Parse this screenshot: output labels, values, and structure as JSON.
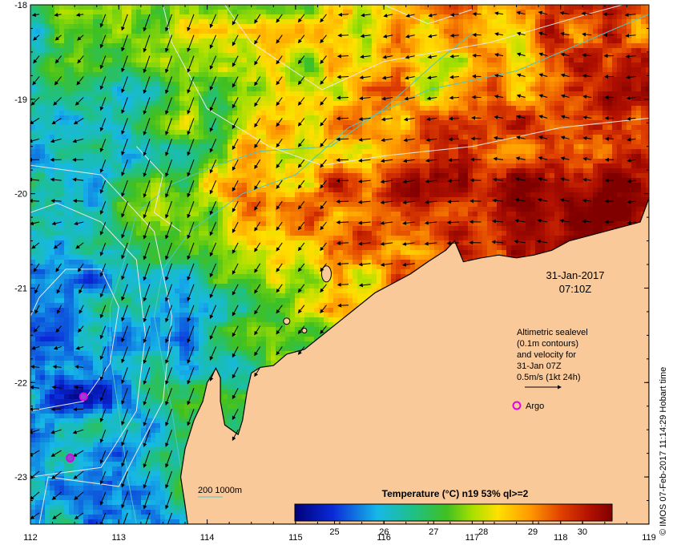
{
  "map": {
    "date_line": "31-Jan-2017",
    "time_line": "07:10Z",
    "legend_lines": [
      "Altimetric sealevel",
      "(0.1m contours)",
      "and velocity for",
      "31-Jan 07Z",
      "0.5m/s (1kt 24h)"
    ],
    "argo_label": "Argo",
    "depth_label": "200  1000m",
    "credit": "© IMOS 07-Feb-2017 11:14:29 Hobart time",
    "colorbar_title": "Temperature (°C) n19 53% ql>=2",
    "colorbar_ticks": [
      "25",
      "26",
      "27",
      "28",
      "29",
      "30"
    ],
    "colorbar_range": [
      24.2,
      30.6
    ],
    "x_ticks": [
      "112",
      "113",
      "114",
      "115",
      "116",
      "117",
      "118",
      "119"
    ],
    "y_ticks": [
      "-18",
      "-19",
      "-20",
      "-21",
      "-22",
      "-23"
    ],
    "lon_range": [
      112,
      119
    ],
    "lat_range": [
      -23.5,
      -18
    ],
    "colors": {
      "land": "#f9c99a",
      "coast": "#000000",
      "contour": "#e8e8e8",
      "bathy": "#4fc6c6",
      "argo": "#e000e0",
      "argo_fill": "#8a4ad0"
    },
    "argo_floats": [
      {
        "lon": 112.6,
        "lat": -22.15
      },
      {
        "lon": 112.45,
        "lat": -22.8
      }
    ]
  }
}
